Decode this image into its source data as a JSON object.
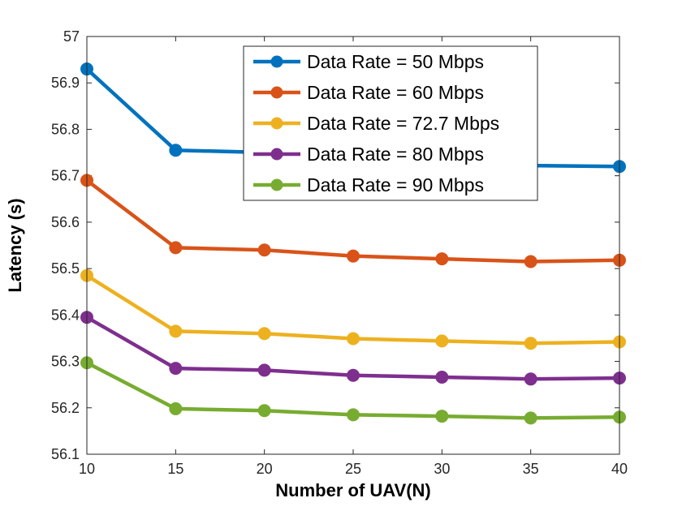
{
  "figure": {
    "background": "#ffffff",
    "axes_color": "#262626",
    "tick_label_color": "#262626",
    "axis_label_color": "#000000",
    "legend_border_color": "#262626",
    "legend_background": "#ffffff"
  },
  "chart_data": {
    "type": "line",
    "title": "",
    "xlabel": "Number of UAV(N)",
    "ylabel": "Latency (s)",
    "xlim": [
      10,
      40
    ],
    "ylim": [
      56.1,
      57
    ],
    "xticks": [
      10,
      15,
      20,
      25,
      30,
      35,
      40
    ],
    "yticks": [
      56.1,
      56.2,
      56.3,
      56.4,
      56.5,
      56.6,
      56.7,
      56.8,
      56.9,
      57
    ],
    "grid": false,
    "legend_position": "inside-top-center",
    "marker": "circle",
    "line_width": 4.5,
    "marker_radius": 7.5,
    "x": [
      10,
      15,
      20,
      25,
      30,
      35,
      40
    ],
    "series": [
      {
        "name": "Data Rate = 50 Mbps",
        "color": "#0072BD",
        "values": [
          56.93,
          56.755,
          56.75,
          56.74,
          56.73,
          56.722,
          56.72
        ]
      },
      {
        "name": "Data Rate = 60 Mbps",
        "color": "#D95319",
        "values": [
          56.69,
          56.545,
          56.54,
          56.527,
          56.521,
          56.515,
          56.518
        ]
      },
      {
        "name": "Data Rate = 72.7 Mbps",
        "color": "#EDB120",
        "values": [
          56.485,
          56.365,
          56.36,
          56.349,
          56.344,
          56.339,
          56.342
        ]
      },
      {
        "name": "Data Rate = 80 Mbps",
        "color": "#7E2F8E",
        "values": [
          56.395,
          56.285,
          56.281,
          56.27,
          56.266,
          56.262,
          56.264
        ]
      },
      {
        "name": "Data Rate = 90 Mbps",
        "color": "#77AC30",
        "values": [
          56.297,
          56.198,
          56.194,
          56.185,
          56.182,
          56.178,
          56.18
        ]
      }
    ]
  }
}
